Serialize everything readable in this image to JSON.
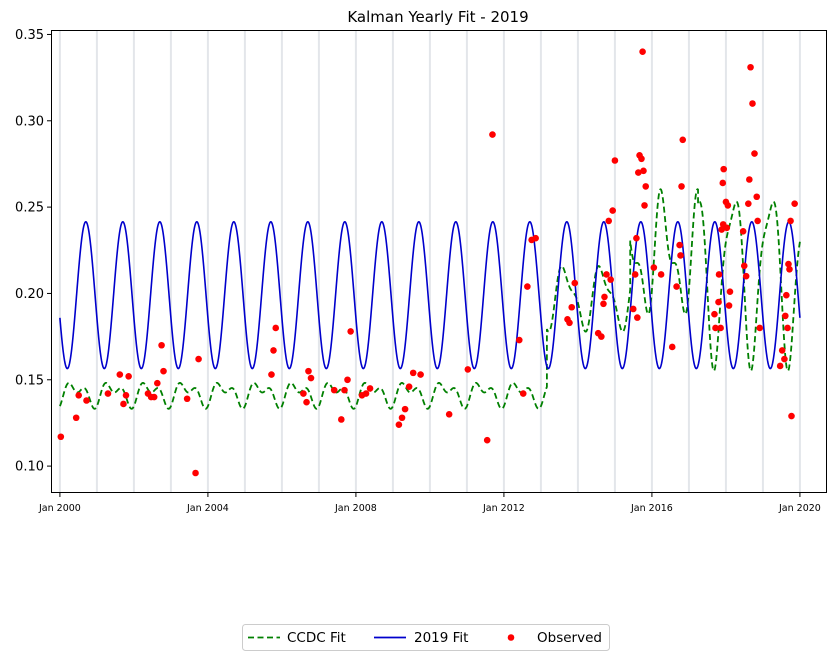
{
  "chart_data": {
    "type": "line",
    "title": "Kalman Yearly Fit - 2019",
    "xlabel": "",
    "ylabel": "",
    "xlim": [
      "1999-10-15",
      "2020-09-15"
    ],
    "ylim": [
      0.085,
      0.352
    ],
    "x_ticks": [
      "Jan 2000",
      "Jan 2004",
      "Jan 2008",
      "Jan 2012",
      "Jan 2016",
      "Jan 2020"
    ],
    "y_ticks": [
      0.1,
      0.15,
      0.2,
      0.25,
      0.3,
      0.35
    ],
    "y_tick_labels": [
      "0.10",
      "0.15",
      "0.20",
      "0.25",
      "0.30",
      "0.35"
    ],
    "vertical_grid": "faint line at each year start",
    "legend_position": "below plot, centered",
    "legend": {
      "ccdc": "CCDC Fit",
      "fit2019": "2019 Fit",
      "observed": "Observed"
    },
    "colors": {
      "ccdc": "#008000",
      "fit2019": "#0000cc",
      "observed": "#ff0000"
    },
    "series": [
      {
        "name": "CCDC Fit",
        "style": "dashed",
        "segments": [
          {
            "start": "2000-01-01",
            "end": "2013-03-01",
            "mean": 0.142,
            "amp1": 0.005,
            "amp2": 0.004,
            "phase1": 0.4,
            "phase2": 1.2
          },
          {
            "start": "2013-03-01",
            "end": "2015-06-01",
            "mean": 0.198,
            "amp1": 0.016,
            "amp2": 0.006,
            "phase1": -0.35,
            "phase2": 0.5
          },
          {
            "start": "2015-06-01",
            "end": "2017-04-01",
            "mean": 0.222,
            "amp1": 0.028,
            "amp2": 0.014,
            "phase1": 0.3,
            "phase2": 0.7
          },
          {
            "start": "2017-04-01",
            "end": "2020-01-01",
            "mean": 0.212,
            "amp1": 0.046,
            "amp2": 0.012,
            "phase1": 0.2,
            "phase2": 0.9
          }
        ]
      },
      {
        "name": "2019 Fit",
        "style": "solid",
        "start": "2000-01-01",
        "end": "2020-01-01",
        "mean": 0.199,
        "amplitude": 0.0425,
        "peak_fraction_of_year": 0.7
      }
    ],
    "observed": [
      [
        "2000-01-10",
        0.117
      ],
      [
        "2000-06-10",
        0.128
      ],
      [
        "2000-07-05",
        0.141
      ],
      [
        "2000-09-20",
        0.138
      ],
      [
        "2001-04-20",
        0.142
      ],
      [
        "2001-08-15",
        0.153
      ],
      [
        "2001-09-20",
        0.136
      ],
      [
        "2001-10-15",
        0.141
      ],
      [
        "2001-11-10",
        0.152
      ],
      [
        "2002-05-20",
        0.142
      ],
      [
        "2002-06-20",
        0.14
      ],
      [
        "2002-07-20",
        0.14
      ],
      [
        "2002-08-20",
        0.148
      ],
      [
        "2002-10-01",
        0.17
      ],
      [
        "2002-10-20",
        0.155
      ],
      [
        "2003-06-10",
        0.139
      ],
      [
        "2003-09-01",
        0.096
      ],
      [
        "2003-10-01",
        0.162
      ],
      [
        "2005-09-20",
        0.153
      ],
      [
        "2005-10-10",
        0.167
      ],
      [
        "2005-11-01",
        0.18
      ],
      [
        "2006-08-01",
        0.142
      ],
      [
        "2006-09-01",
        0.137
      ],
      [
        "2006-09-20",
        0.155
      ],
      [
        "2006-10-15",
        0.151
      ],
      [
        "2007-06-01",
        0.144
      ],
      [
        "2007-08-10",
        0.127
      ],
      [
        "2007-09-10",
        0.144
      ],
      [
        "2007-10-10",
        0.15
      ],
      [
        "2007-11-10",
        0.178
      ],
      [
        "2008-03-01",
        0.141
      ],
      [
        "2008-04-10",
        0.142
      ],
      [
        "2008-05-20",
        0.145
      ],
      [
        "2009-03-01",
        0.124
      ],
      [
        "2009-04-01",
        0.128
      ],
      [
        "2009-05-01",
        0.133
      ],
      [
        "2009-06-10",
        0.146
      ],
      [
        "2009-07-20",
        0.154
      ],
      [
        "2009-10-01",
        0.153
      ],
      [
        "2010-07-10",
        0.13
      ],
      [
        "2011-01-10",
        0.156
      ],
      [
        "2011-07-20",
        0.115
      ],
      [
        "2011-09-10",
        0.292
      ],
      [
        "2012-06-01",
        0.173
      ],
      [
        "2012-07-10",
        0.142
      ],
      [
        "2012-08-20",
        0.204
      ],
      [
        "2012-10-01",
        0.231
      ],
      [
        "2012-11-10",
        0.232
      ],
      [
        "2013-09-20",
        0.185
      ],
      [
        "2013-10-10",
        0.183
      ],
      [
        "2013-11-01",
        0.192
      ],
      [
        "2013-12-01",
        0.206
      ],
      [
        "2014-07-20",
        0.177
      ],
      [
        "2014-08-20",
        0.175
      ],
      [
        "2014-09-10",
        0.194
      ],
      [
        "2014-09-20",
        0.198
      ],
      [
        "2014-10-10",
        0.211
      ],
      [
        "2014-11-01",
        0.242
      ],
      [
        "2014-11-20",
        0.208
      ],
      [
        "2014-12-10",
        0.248
      ],
      [
        "2015-01-01",
        0.277
      ],
      [
        "2015-07-01",
        0.191
      ],
      [
        "2015-07-20",
        0.211
      ],
      [
        "2015-08-01",
        0.232
      ],
      [
        "2015-08-10",
        0.186
      ],
      [
        "2015-08-20",
        0.27
      ],
      [
        "2015-09-01",
        0.28
      ],
      [
        "2015-09-20",
        0.278
      ],
      [
        "2015-10-01",
        0.34
      ],
      [
        "2015-10-10",
        0.271
      ],
      [
        "2015-10-20",
        0.251
      ],
      [
        "2015-11-01",
        0.262
      ],
      [
        "2016-01-20",
        0.215
      ],
      [
        "2016-04-01",
        0.211
      ],
      [
        "2016-07-20",
        0.169
      ],
      [
        "2016-09-01",
        0.204
      ],
      [
        "2016-10-01",
        0.228
      ],
      [
        "2016-10-10",
        0.222
      ],
      [
        "2016-10-20",
        0.262
      ],
      [
        "2016-11-01",
        0.289
      ],
      [
        "2017-09-10",
        0.188
      ],
      [
        "2017-09-20",
        0.18
      ],
      [
        "2017-10-20",
        0.195
      ],
      [
        "2017-10-25",
        0.211
      ],
      [
        "2017-11-10",
        0.18
      ],
      [
        "2017-11-20",
        0.237
      ],
      [
        "2017-12-01",
        0.264
      ],
      [
        "2017-12-05",
        0.24
      ],
      [
        "2017-12-10",
        0.272
      ],
      [
        "2018-01-01",
        0.253
      ],
      [
        "2018-01-10",
        0.238
      ],
      [
        "2018-01-20",
        0.251
      ],
      [
        "2018-02-01",
        0.193
      ],
      [
        "2018-02-10",
        0.201
      ],
      [
        "2018-06-20",
        0.236
      ],
      [
        "2018-07-01",
        0.216
      ],
      [
        "2018-07-20",
        0.21
      ],
      [
        "2018-08-10",
        0.252
      ],
      [
        "2018-08-20",
        0.266
      ],
      [
        "2018-09-01",
        0.331
      ],
      [
        "2018-09-20",
        0.31
      ],
      [
        "2018-10-10",
        0.281
      ],
      [
        "2018-11-01",
        0.256
      ],
      [
        "2018-11-10",
        0.242
      ],
      [
        "2018-12-01",
        0.18
      ],
      [
        "2019-06-20",
        0.158
      ],
      [
        "2019-07-10",
        0.167
      ],
      [
        "2019-08-01",
        0.162
      ],
      [
        "2019-08-10",
        0.187
      ],
      [
        "2019-08-20",
        0.199
      ],
      [
        "2019-09-01",
        0.18
      ],
      [
        "2019-09-10",
        0.217
      ],
      [
        "2019-09-20",
        0.214
      ],
      [
        "2019-10-01",
        0.242
      ],
      [
        "2019-10-10",
        0.129
      ],
      [
        "2019-11-10",
        0.252
      ]
    ]
  }
}
